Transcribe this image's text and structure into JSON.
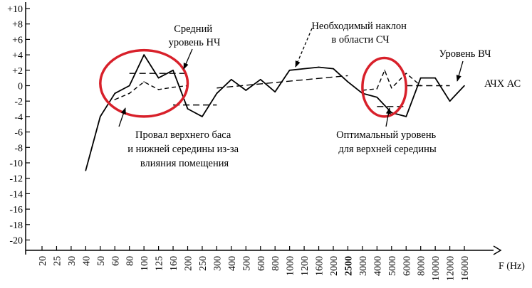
{
  "chart_data": {
    "type": "line",
    "xlabel": "F (Hz)",
    "y_ticks": [
      "+10",
      "+8",
      "+6",
      "+4",
      "+2",
      "0",
      "-2",
      "-4",
      "-6",
      "-8",
      "-10",
      "-12",
      "-14",
      "-16",
      "-18",
      "-20"
    ],
    "x_ticks": [
      "20",
      "25",
      "30",
      "40",
      "50",
      "60",
      "80",
      "100",
      "125",
      "160",
      "200",
      "250",
      "300",
      "400",
      "500",
      "600",
      "800",
      "1000",
      "1200",
      "1600",
      "2000",
      "2500",
      "3000",
      "4000",
      "5000",
      "6000",
      "8000",
      "10000",
      "12000",
      "16000"
    ],
    "ylim": [
      -20,
      10
    ],
    "grid": false,
    "series": [
      {
        "name": "АЧХ АС",
        "style": "solid",
        "points": [
          [
            40,
            -11
          ],
          [
            50,
            -4
          ],
          [
            60,
            -1
          ],
          [
            80,
            0
          ],
          [
            100,
            4
          ],
          [
            125,
            1
          ],
          [
            160,
            2
          ],
          [
            200,
            -3
          ],
          [
            250,
            -4
          ],
          [
            300,
            -1
          ],
          [
            400,
            0.8
          ],
          [
            500,
            -0.6
          ],
          [
            600,
            0.8
          ],
          [
            800,
            -0.8
          ],
          [
            1000,
            2
          ],
          [
            1200,
            2.2
          ],
          [
            1600,
            2.4
          ],
          [
            2000,
            2.2
          ],
          [
            2500,
            0.5
          ],
          [
            3000,
            -1
          ],
          [
            4000,
            -1.5
          ],
          [
            5000,
            -3.5
          ],
          [
            6000,
            -4
          ],
          [
            8000,
            1
          ],
          [
            10000,
            1
          ],
          [
            12000,
            -2
          ],
          [
            16000,
            0
          ]
        ]
      },
      {
        "name": "",
        "style": "dashed",
        "points": [
          [
            60,
            -1.8
          ],
          [
            80,
            -1
          ],
          [
            100,
            0.5
          ],
          [
            125,
            -0.5
          ],
          [
            160,
            -0.2
          ],
          [
            200,
            0
          ]
        ]
      },
      {
        "name": "",
        "style": "dashed",
        "points": [
          [
            3000,
            -0.6
          ],
          [
            4000,
            -0.4
          ],
          [
            4500,
            2
          ],
          [
            5000,
            -0.3
          ],
          [
            6000,
            1.6
          ],
          [
            8000,
            0
          ]
        ]
      }
    ],
    "reference_lines": [
      {
        "kind": "level",
        "x": [
          80,
          200
        ],
        "y": 1.6
      },
      {
        "kind": "level",
        "x": [
          160,
          300
        ],
        "y": -2.5
      },
      {
        "kind": "trend",
        "x": [
          300,
          2500
        ],
        "y": [
          -0.3,
          1.3
        ]
      },
      {
        "kind": "level",
        "x": [
          4000,
          6000
        ],
        "y": -2.7
      },
      {
        "kind": "level",
        "x": [
          6000,
          12000
        ],
        "y": 0
      }
    ],
    "highlights": [
      {
        "kind": "ellipse",
        "x_range": [
          50,
          200
        ],
        "y_range": [
          -4,
          4.6
        ],
        "color": "#d8202a"
      },
      {
        "kind": "ellipse",
        "x_range": [
          3000,
          6000
        ],
        "y_range": [
          -4,
          3.6
        ],
        "color": "#d8202a"
      }
    ],
    "annotations": [
      {
        "lines": [
          "Средний",
          "уровень НЧ"
        ]
      },
      {
        "lines": [
          "Необходимый наклон",
          "в области СЧ"
        ]
      },
      {
        "lines": [
          "Уровень ВЧ"
        ]
      },
      {
        "lines": [
          "АЧХ АС"
        ]
      },
      {
        "lines": [
          "Провал верхнего баса",
          "и нижней середины из-за",
          "влияния помещения"
        ]
      },
      {
        "lines": [
          "Оптимальный уровень",
          "для верхней середины"
        ]
      }
    ]
  }
}
